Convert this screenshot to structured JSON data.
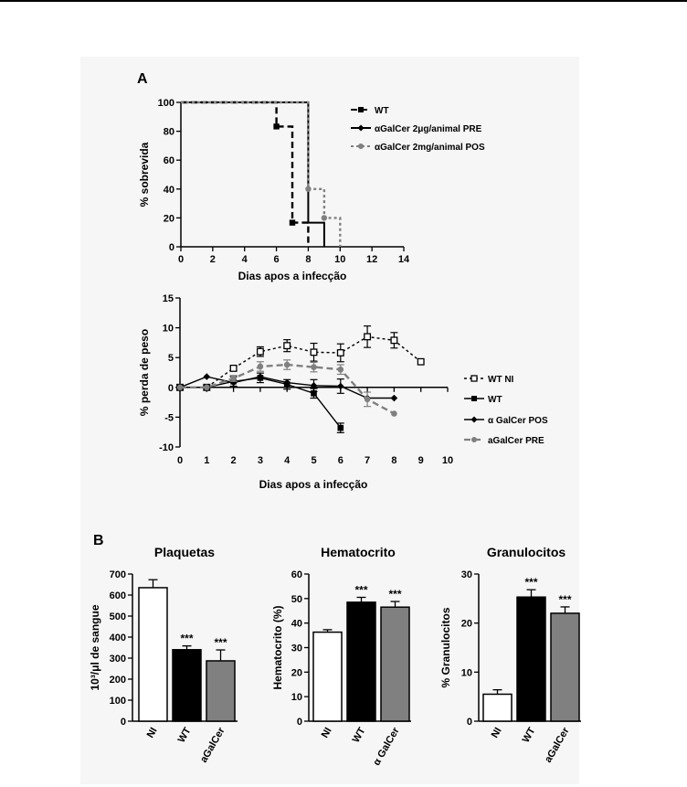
{
  "page": {
    "background": "#ffffff",
    "figure_background": "#f6f6f6"
  },
  "panels": {
    "a_label": "A",
    "b_label": "B"
  },
  "chart_data": [
    {
      "id": "survival",
      "type": "line",
      "subtype": "step",
      "xlabel": "Dias apos a infecção",
      "ylabel": "% sobrevida",
      "xlim": [
        0,
        14
      ],
      "ylim": [
        0,
        100
      ],
      "xticks": [
        "0",
        "2",
        "4",
        "6",
        "8",
        "10",
        "12",
        "14"
      ],
      "yticks": [
        "0",
        "20",
        "40",
        "60",
        "80",
        "100"
      ],
      "legend_position": "right",
      "series": [
        {
          "name": "WT",
          "color": "#000000",
          "dash": "dashed",
          "marker": "square",
          "points": [
            [
              0,
              100
            ],
            [
              6,
              100
            ],
            [
              6,
              83.3
            ],
            [
              7,
              83.3
            ],
            [
              7,
              16.7
            ],
            [
              8,
              16.7
            ],
            [
              8,
              0
            ]
          ],
          "marker_points": [
            [
              6,
              83.3
            ],
            [
              7,
              16.7
            ]
          ]
        },
        {
          "name": "αGalCer 2μg/animal PRE",
          "color": "#000000",
          "dash": "solid",
          "marker": "diamond",
          "points": [
            [
              0,
              100
            ],
            [
              8,
              100
            ],
            [
              8,
              16.7
            ],
            [
              9,
              16.7
            ],
            [
              9,
              0
            ]
          ],
          "marker_points": []
        },
        {
          "name": "αGalCer 2mg/animal POS",
          "color": "#808080",
          "dash": "dotted",
          "marker": "circle",
          "points": [
            [
              0,
              100
            ],
            [
              8,
              100
            ],
            [
              8,
              40
            ],
            [
              9,
              40
            ],
            [
              9,
              20
            ],
            [
              10,
              20
            ],
            [
              10,
              0
            ]
          ],
          "marker_points": [
            [
              8,
              40
            ],
            [
              9,
              20
            ]
          ]
        }
      ]
    },
    {
      "id": "weight",
      "type": "line",
      "xlabel": "Dias apos a infecção",
      "ylabel": "% perda de peso",
      "xlim": [
        0,
        10
      ],
      "ylim": [
        -10,
        15
      ],
      "xticks": [
        "0",
        "1",
        "2",
        "3",
        "4",
        "5",
        "6",
        "7",
        "8",
        "9",
        "10"
      ],
      "yticks": [
        "-10",
        "-5",
        "0",
        "5",
        "10",
        "15"
      ],
      "legend_position": "right",
      "series": [
        {
          "name": "WT NI",
          "color": "#000000",
          "dash": "dotted",
          "marker": "open-square",
          "x": [
            0,
            1,
            2,
            3,
            4,
            5,
            6,
            7,
            8,
            9
          ],
          "y": [
            0,
            0,
            3.2,
            6,
            7,
            5.9,
            5.8,
            8.5,
            7.9,
            4.3
          ],
          "err": [
            0,
            0,
            0.3,
            0.8,
            1,
            1.5,
            1.5,
            1.8,
            1.3,
            0
          ]
        },
        {
          "name": "WT",
          "color": "#000000",
          "dash": "solid",
          "marker": "square",
          "x": [
            0,
            1,
            2,
            3,
            4,
            5,
            6
          ],
          "y": [
            0,
            0,
            1,
            1.6,
            0.5,
            -1,
            -6.8
          ],
          "err": [
            0,
            0,
            0.8,
            0.8,
            0.8,
            0.8,
            0.8
          ]
        },
        {
          "name": "α GalCer POS",
          "color": "#000000",
          "dash": "solid",
          "marker": "diamond",
          "x": [
            0,
            1,
            2,
            3,
            4,
            5,
            6,
            7,
            8
          ],
          "y": [
            0,
            1.8,
            0.8,
            1.8,
            0.8,
            0.3,
            0.2,
            -1.8,
            -1.8
          ],
          "err": [
            0,
            0,
            0,
            0,
            0,
            1,
            1.2,
            0,
            0
          ]
        },
        {
          "name": "aGalCer PRE",
          "color": "#808080",
          "dash": "dashed",
          "marker": "circle",
          "x": [
            0,
            1,
            2,
            3,
            4,
            5,
            6,
            7,
            8
          ],
          "y": [
            0,
            0,
            1.5,
            3.5,
            3.8,
            3.4,
            3,
            -2,
            -4.4
          ],
          "err": [
            0,
            0,
            0.5,
            0.8,
            0.8,
            0.8,
            0.8,
            1.2,
            0
          ]
        }
      ]
    },
    {
      "id": "plaquetas",
      "type": "bar",
      "title": "Plaquetas",
      "ylabel": "10³/μl de sangue",
      "ylim": [
        0,
        700
      ],
      "yticks": [
        "0",
        "100",
        "200",
        "300",
        "400",
        "500",
        "600",
        "700"
      ],
      "categories": [
        "NI",
        "WT",
        "aGalCer"
      ],
      "values": [
        635,
        340,
        287
      ],
      "errors": [
        38,
        18,
        52
      ],
      "colors": [
        "#ffffff",
        "#000000",
        "#808080"
      ],
      "annotations": [
        "",
        "***",
        "***"
      ]
    },
    {
      "id": "hematocrito",
      "type": "bar",
      "title": "Hematocrito",
      "ylabel": "Hematocrito (%)",
      "ylim": [
        0,
        60
      ],
      "yticks": [
        "0",
        "10",
        "20",
        "30",
        "40",
        "50",
        "60"
      ],
      "categories": [
        "NI",
        "WT",
        "α GalCer"
      ],
      "values": [
        36.3,
        48.5,
        46.5
      ],
      "errors": [
        1,
        2,
        2.3
      ],
      "colors": [
        "#ffffff",
        "#000000",
        "#808080"
      ],
      "annotations": [
        "",
        "***",
        "***"
      ]
    },
    {
      "id": "granulocitos",
      "type": "bar",
      "title": "Granulocitos",
      "ylabel": "% Granulocitos",
      "ylim": [
        0,
        30
      ],
      "yticks": [
        "0",
        "10",
        "20",
        "30"
      ],
      "categories": [
        "NI",
        "WT",
        "aGalCer"
      ],
      "values": [
        5.5,
        25.3,
        22
      ],
      "errors": [
        0.9,
        1.5,
        1.3
      ],
      "colors": [
        "#ffffff",
        "#000000",
        "#808080"
      ],
      "annotations": [
        "",
        "***",
        "***"
      ]
    }
  ]
}
